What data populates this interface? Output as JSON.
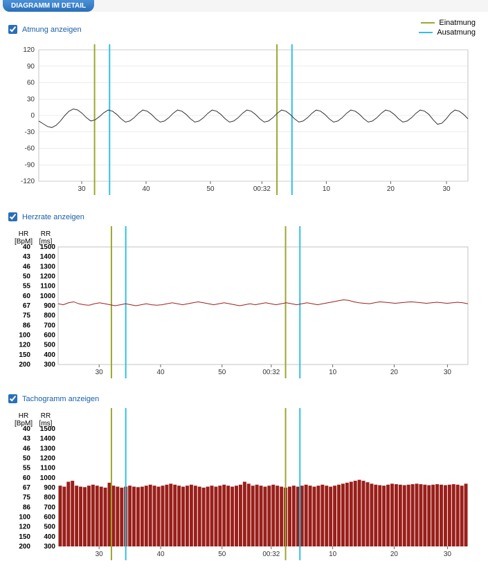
{
  "header": {
    "title": "DIAGRAMM IM DETAIL"
  },
  "legend": {
    "einatmung": {
      "label": "Einatmung",
      "color": "#9aa82f"
    },
    "ausatmung": {
      "label": "Ausatmung",
      "color": "#2fbfe8"
    }
  },
  "x_axis": {
    "ticks": [
      "30",
      "40",
      "50",
      "00:32",
      "10",
      "20",
      "30"
    ],
    "tick_positions": [
      0.1,
      0.25,
      0.4,
      0.52,
      0.67,
      0.82,
      0.95
    ]
  },
  "markers": {
    "einatmung_x": [
      0.13,
      0.555
    ],
    "ausatmung_x": [
      0.165,
      0.59
    ],
    "einatmung_color": "#9aa82f",
    "ausatmung_color": "#2fbfe8"
  },
  "chart1": {
    "checkbox_label": "Atmung anzeigen",
    "checked": true,
    "type": "line",
    "ylim": [
      -120,
      120
    ],
    "yticks": [
      120,
      90,
      60,
      30,
      0,
      -30,
      -60,
      -90,
      -120
    ],
    "line_color": "#333333",
    "grid_color": "#d8d8d8",
    "background": "#ffffff",
    "data": [
      -10,
      -15,
      -20,
      -22,
      -18,
      -10,
      0,
      8,
      12,
      10,
      4,
      -4,
      -10,
      -8,
      -2,
      5,
      10,
      8,
      2,
      -6,
      -12,
      -10,
      -4,
      4,
      10,
      8,
      2,
      -6,
      -12,
      -10,
      -4,
      4,
      10,
      8,
      2,
      -6,
      -12,
      -10,
      -4,
      4,
      10,
      8,
      2,
      -6,
      -12,
      -10,
      -4,
      4,
      10,
      8,
      2,
      -6,
      -12,
      -10,
      -4,
      4,
      10,
      8,
      2,
      -6,
      -12,
      -10,
      -4,
      4,
      10,
      8,
      2,
      -6,
      -12,
      -10,
      -4,
      4,
      10,
      8,
      2,
      -6,
      -12,
      -10,
      -4,
      4,
      10,
      8,
      2,
      -6,
      -12,
      -10,
      -4,
      4,
      10,
      8,
      2,
      -8,
      -16,
      -14,
      -6,
      4,
      10,
      8,
      2,
      -6
    ]
  },
  "chart2": {
    "checkbox_label": "Herzrate anzeigen",
    "checked": true,
    "type": "line",
    "axis_headers": {
      "left": "HR\n[BpM]",
      "right": "RR\n[ms]"
    },
    "left_ticks": [
      "40",
      "43",
      "46",
      "50",
      "55",
      "60",
      "67",
      "75",
      "86",
      "100",
      "120",
      "150",
      "200"
    ],
    "right_ticks": [
      "1500",
      "1400",
      "1300",
      "1200",
      "1100",
      "1000",
      "900",
      "800",
      "700",
      "600",
      "500",
      "400",
      "300"
    ],
    "line_color": "#9a1f1a",
    "grid_color": "#d8d8d8",
    "background": "#ffffff",
    "data": [
      920,
      910,
      930,
      940,
      920,
      910,
      905,
      920,
      930,
      920,
      910,
      900,
      910,
      920,
      910,
      900,
      910,
      920,
      910,
      905,
      910,
      920,
      930,
      920,
      910,
      920,
      930,
      940,
      930,
      920,
      910,
      920,
      930,
      920,
      910,
      900,
      910,
      920,
      910,
      920,
      930,
      920,
      910,
      920,
      930,
      920,
      910,
      920,
      930,
      920,
      910,
      920,
      930,
      940,
      950,
      960,
      955,
      940,
      930,
      925,
      920,
      930,
      940,
      935,
      930,
      925,
      930,
      935,
      940,
      935,
      930,
      925,
      930,
      935,
      930,
      925,
      930,
      935,
      930,
      920
    ],
    "ylim": [
      300,
      1500
    ]
  },
  "chart3": {
    "checkbox_label": "Tachogramm anzeigen",
    "checked": true,
    "type": "bar",
    "axis_headers": {
      "left": "HR\n[BpM]",
      "right": "RR\n[ms]"
    },
    "left_ticks": [
      "40",
      "43",
      "46",
      "50",
      "55",
      "60",
      "67",
      "75",
      "86",
      "100",
      "120",
      "150",
      "200"
    ],
    "right_ticks": [
      "1500",
      "1400",
      "1300",
      "1200",
      "1100",
      "1000",
      "900",
      "800",
      "700",
      "600",
      "500",
      "400",
      "300"
    ],
    "bar_color": "#9a1f1a",
    "background": "#ffffff",
    "data": [
      920,
      910,
      960,
      970,
      920,
      910,
      905,
      920,
      930,
      920,
      910,
      900,
      950,
      920,
      910,
      900,
      910,
      920,
      910,
      905,
      910,
      920,
      930,
      920,
      910,
      920,
      930,
      940,
      930,
      920,
      910,
      920,
      930,
      920,
      910,
      900,
      910,
      920,
      910,
      920,
      930,
      920,
      910,
      920,
      930,
      960,
      940,
      920,
      930,
      920,
      910,
      920,
      930,
      920,
      910,
      900,
      910,
      920,
      910,
      920,
      930,
      920,
      910,
      920,
      930,
      920,
      910,
      920,
      930,
      940,
      950,
      960,
      970,
      980,
      970,
      955,
      940,
      930,
      925,
      920,
      930,
      940,
      935,
      930,
      925,
      930,
      935,
      940,
      935,
      930,
      925,
      930,
      935,
      930,
      925,
      930,
      935,
      930,
      920,
      940
    ],
    "ylim": [
      300,
      1500
    ]
  }
}
